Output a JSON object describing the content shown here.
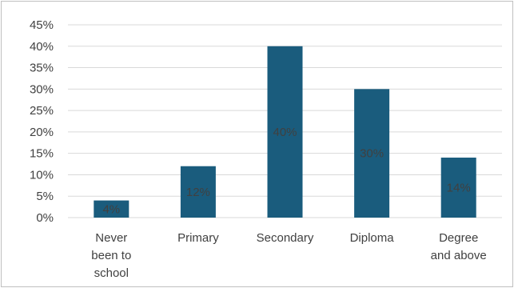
{
  "chart_data": {
    "type": "bar",
    "title": "",
    "xlabel": "",
    "ylabel": "",
    "categories": [
      [
        "Never",
        "been to",
        "school"
      ],
      [
        "Primary"
      ],
      [
        "Secondary"
      ],
      [
        "Diploma"
      ],
      [
        "Degree",
        "and above"
      ]
    ],
    "values": [
      4,
      12,
      40,
      30,
      14
    ],
    "data_labels": [
      "4%",
      "12%",
      "40%",
      "30%",
      "14%"
    ],
    "y_ticks": [
      "0%",
      "5%",
      "10%",
      "15%",
      "20%",
      "25%",
      "30%",
      "35%",
      "40%",
      "45%"
    ],
    "ylim": [
      0,
      45
    ],
    "grid": true,
    "legend": "none",
    "bar_color": "#1a5c7d",
    "label_color": "#404040",
    "grid_color": "#d9d9d9"
  }
}
